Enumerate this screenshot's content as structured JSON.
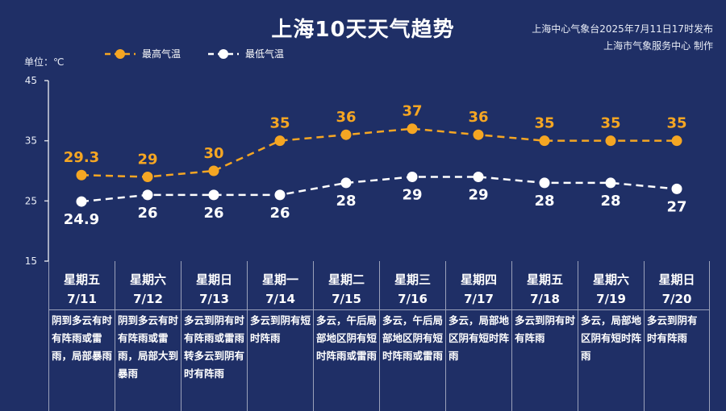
{
  "title": "上海10天天气趋势",
  "issuer": {
    "line1": "上海中心气象台2025年7月11日17时发布",
    "line2": "上海市气象服务中心 制作"
  },
  "unit_label": "单位：℃",
  "legend": {
    "high": "最高气温",
    "low": "最低气温"
  },
  "colors": {
    "background": "#1f2f66",
    "high": "#f5a623",
    "low": "#ffffff"
  },
  "chart_data": {
    "type": "line",
    "ylim": [
      15,
      45
    ],
    "yticks": [
      15,
      25,
      35,
      45
    ],
    "categories": [
      "7/11",
      "7/12",
      "7/13",
      "7/14",
      "7/15",
      "7/16",
      "7/17",
      "7/18",
      "7/19",
      "7/20"
    ],
    "series": [
      {
        "name": "最高气温",
        "values": [
          29.3,
          29,
          30,
          35,
          36,
          37,
          36,
          35,
          35,
          35
        ]
      },
      {
        "name": "最低气温",
        "values": [
          24.9,
          26,
          26,
          26,
          28,
          29,
          29,
          28,
          28,
          27
        ]
      }
    ]
  },
  "days": [
    {
      "weekday": "星期五",
      "date": "7/11",
      "desc": "阴到多云有时有阵雨或雷雨，局部暴雨"
    },
    {
      "weekday": "星期六",
      "date": "7/12",
      "desc": "阴到多云有时有阵雨或雷雨，局部大到暴雨"
    },
    {
      "weekday": "星期日",
      "date": "7/13",
      "desc": "多云到阴有时有阵雨或雷雨转多云到阴有时有阵雨"
    },
    {
      "weekday": "星期一",
      "date": "7/14",
      "desc": "多云到阴有短时阵雨"
    },
    {
      "weekday": "星期二",
      "date": "7/15",
      "desc": "多云，午后局部地区阴有短时阵雨或雷雨"
    },
    {
      "weekday": "星期三",
      "date": "7/16",
      "desc": "多云，午后局部地区阴有短时阵雨或雷雨"
    },
    {
      "weekday": "星期四",
      "date": "7/17",
      "desc": "多云，局部地区阴有短时阵雨"
    },
    {
      "weekday": "星期五",
      "date": "7/18",
      "desc": "多云到阴有时有阵雨"
    },
    {
      "weekday": "星期六",
      "date": "7/19",
      "desc": "多云，局部地区阴有短时阵雨"
    },
    {
      "weekday": "星期日",
      "date": "7/20",
      "desc": "多云到阴有时有阵雨"
    }
  ]
}
